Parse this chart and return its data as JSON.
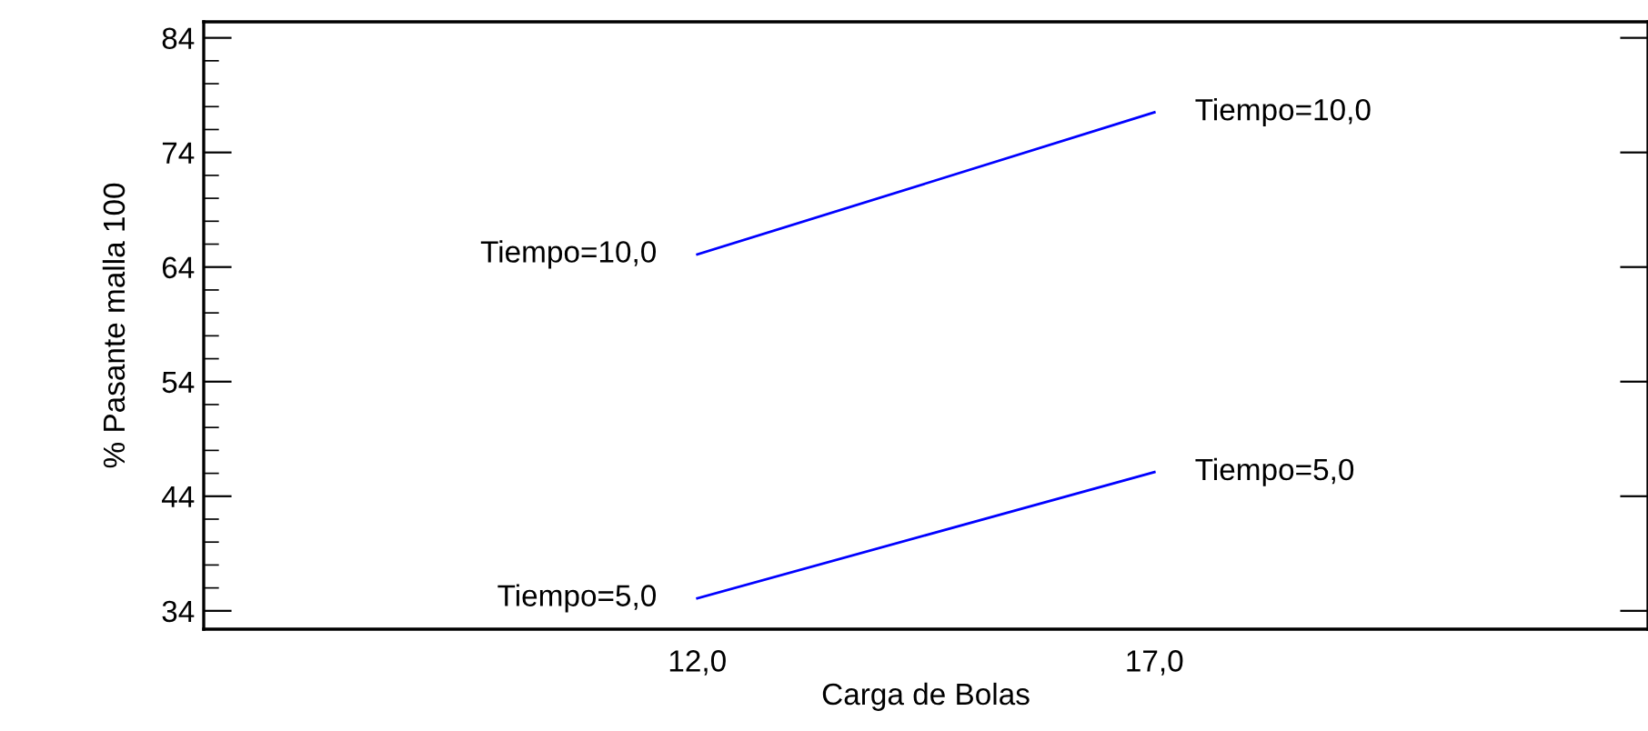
{
  "chart_data": {
    "type": "line",
    "xlabel": "Carga de Bolas",
    "ylabel": "% Pasante malla 100",
    "xlim": [
      6.6,
      22.4
    ],
    "xticks": [
      {
        "value": 12,
        "label": "12,0"
      },
      {
        "value": 17,
        "label": "17,0"
      }
    ],
    "ylim": [
      32.4,
      85.4
    ],
    "yticks": [
      34,
      44,
      54,
      64,
      74,
      84
    ],
    "series": [
      {
        "name": "Tiempo=5,0",
        "color": "#0000ff",
        "x": [
          12,
          14.5,
          17
        ],
        "values": [
          35.1,
          40.6,
          46.1
        ]
      },
      {
        "name": "Tiempo=10,0",
        "color": "#0000ff",
        "x": [
          12,
          14.5,
          17
        ],
        "values": [
          65.1,
          71.3,
          77.5
        ]
      }
    ],
    "grid": false,
    "legend": false,
    "marker": "none",
    "line_style": "solid"
  }
}
